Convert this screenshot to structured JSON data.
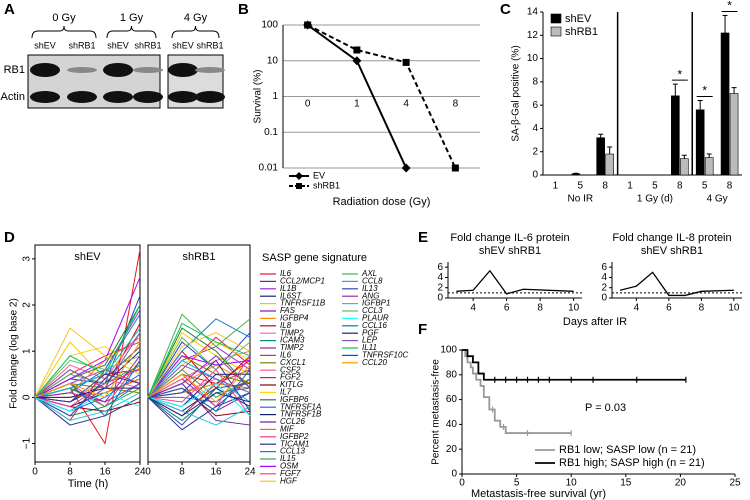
{
  "blot": {
    "label": "A",
    "doses": [
      "0 Gy",
      "1 Gy",
      "4 Gy"
    ],
    "lanes": [
      "shEV",
      "shRB1",
      "shEV",
      "shRB1",
      "shEV",
      "shRB1"
    ],
    "rows": [
      "RB1",
      "Actin"
    ]
  },
  "chart_data": [
    {
      "type": "line",
      "label": "B",
      "ylabel": "Survival (%)",
      "xlabel": "Radiation dose (Gy)",
      "categories": [
        "0",
        "1",
        "4",
        "8"
      ],
      "log_y": true,
      "ylim": [
        0.01,
        100
      ],
      "yticks": [
        0.01,
        0.1,
        1,
        10,
        100
      ],
      "grid": true,
      "legend": "lower left",
      "series": [
        {
          "name": "EV",
          "color": "#000000",
          "marker": "diamond",
          "dash": "solid",
          "values": [
            100,
            10,
            0.01,
            null
          ]
        },
        {
          "name": "shRB1",
          "color": "#000000",
          "marker": "square",
          "dash": "dashed",
          "values": [
            100,
            20,
            9,
            0.01
          ]
        }
      ]
    },
    {
      "type": "bar",
      "label": "C",
      "ylabel": "SA-β-Gal positive (%)",
      "ylim": [
        0,
        14
      ],
      "yticks": [
        0,
        2,
        4,
        6,
        8,
        10,
        12,
        14
      ],
      "legend": "upper left",
      "groups": [
        {
          "name": "No IR",
          "categories": [
            "1",
            "5",
            "8"
          ]
        },
        {
          "name": "1 Gy (d)",
          "categories": [
            "1",
            "5",
            "8"
          ]
        },
        {
          "name": "4 Gy",
          "categories": [
            "5",
            "8"
          ]
        }
      ],
      "series": [
        {
          "name": "shEV",
          "color": "#000000",
          "values": [
            0,
            0.1,
            3.2,
            0,
            0,
            6.8,
            5.6,
            12.2
          ],
          "errors": [
            0,
            0.05,
            0.3,
            0,
            0,
            1.0,
            0.8,
            1.5
          ]
        },
        {
          "name": "shRB1",
          "color": "#bbbbbb",
          "values": [
            0,
            0,
            1.8,
            0,
            0,
            1.4,
            1.5,
            7.0
          ],
          "errors": [
            0,
            0,
            0.6,
            0,
            0,
            0.3,
            0.3,
            0.5
          ]
        }
      ],
      "significance": [
        null,
        null,
        null,
        null,
        null,
        "*",
        "*",
        "*"
      ]
    },
    {
      "type": "line",
      "label": "D",
      "ylabel": "Fold change (log base 2)",
      "xlabel": "Time (h)",
      "x": [
        0,
        8,
        16,
        24
      ],
      "xlim": [
        0,
        24
      ],
      "xticks": [
        0,
        8,
        16,
        24
      ],
      "ylim": [
        -1.4,
        3.3
      ],
      "yticks": [
        {
          "value": -1,
          "label": "−1"
        },
        0,
        1,
        2,
        3
      ],
      "panels": [
        "shEV",
        "shRB1"
      ],
      "legend_title": "SASP gene signature",
      "series": [
        {
          "name": "IL6",
          "color": "#e41a1c",
          "values": [
            [
              0,
              0.2,
              -1.0,
              3.2
            ],
            [
              0,
              0.5,
              0.3,
              0.8
            ]
          ]
        },
        {
          "name": "CCL2/MCP1",
          "color": "#1f3fbf",
          "values": [
            [
              0,
              0.4,
              0.3,
              2.2
            ],
            [
              0,
              1.2,
              0.6,
              1.4
            ]
          ]
        },
        {
          "name": "IL1B",
          "color": "#9b30d0",
          "values": [
            [
              0,
              0.3,
              0.6,
              1.9
            ],
            [
              0,
              0.8,
              1.1,
              0.6
            ]
          ]
        },
        {
          "name": "IL6ST",
          "color": "#1a237e",
          "values": [
            [
              0,
              -0.2,
              0.1,
              0.4
            ],
            [
              0,
              -0.3,
              0.2,
              -0.2
            ]
          ]
        },
        {
          "name": "TNFRSF11B",
          "color": "#e6d200",
          "values": [
            [
              0,
              1.2,
              0.4,
              1.1
            ],
            [
              0,
              1.4,
              0.9,
              0.5
            ]
          ]
        },
        {
          "name": "FAS",
          "color": "#7b1fa2",
          "values": [
            [
              0,
              -0.3,
              0.2,
              0.7
            ],
            [
              0,
              0.2,
              -0.3,
              0.1
            ]
          ]
        },
        {
          "name": "IGFBP4",
          "color": "#ff8c00",
          "values": [
            [
              0,
              0.1,
              0.8,
              1.3
            ],
            [
              0,
              0.3,
              0.7,
              0.3
            ]
          ]
        },
        {
          "name": "IL8",
          "color": "#d50000",
          "values": [
            [
              0,
              0.6,
              0.2,
              1.6
            ],
            [
              0,
              1.0,
              0.2,
              0.9
            ]
          ]
        },
        {
          "name": "TIMP2",
          "color": "#ff66cc",
          "values": [
            [
              0,
              -0.1,
              0.4,
              0.2
            ],
            [
              0,
              0.1,
              0.4,
              -0.1
            ]
          ]
        },
        {
          "name": "ICAM3",
          "color": "#00897b",
          "values": [
            [
              0,
              -0.4,
              -0.2,
              0.3
            ],
            [
              0,
              -0.5,
              0.1,
              0.2
            ]
          ]
        },
        {
          "name": "TIMP2",
          "color": "#8e24aa",
          "values": [
            [
              0,
              0.2,
              -0.1,
              0.9
            ],
            [
              0,
              0.4,
              -0.2,
              0.4
            ]
          ]
        },
        {
          "name": "IL6",
          "color": "#e91e63",
          "values": [
            [
              0,
              0.5,
              0.9,
              1.2
            ],
            [
              0,
              0.6,
              1.3,
              0.7
            ]
          ]
        },
        {
          "name": "CXCL1",
          "color": "#808000",
          "values": [
            [
              0,
              0.3,
              0.2,
              0.1
            ],
            [
              0,
              0.9,
              0.5,
              0.3
            ]
          ]
        },
        {
          "name": "CSF2",
          "color": "#f06292",
          "values": [
            [
              0,
              0.7,
              0.4,
              1.4
            ],
            [
              0,
              0.4,
              0.8,
              1.0
            ]
          ]
        },
        {
          "name": "FGF2",
          "color": "#c62828",
          "values": [
            [
              0,
              -0.5,
              0.6,
              0.3
            ],
            [
              0,
              -0.4,
              0.3,
              0.6
            ]
          ]
        },
        {
          "name": "KITLG",
          "color": "#8b0000",
          "values": [
            [
              0,
              -0.2,
              -0.3,
              -0.1
            ],
            [
              0,
              0.2,
              -0.4,
              -0.3
            ]
          ]
        },
        {
          "name": "IL7",
          "color": "#ffd600",
          "values": [
            [
              0,
              0.9,
              1.1,
              0.6
            ],
            [
              0,
              0.7,
              1.2,
              0.8
            ]
          ]
        },
        {
          "name": "IGFBP6",
          "color": "#2e7d32",
          "values": [
            [
              0,
              0.4,
              0.7,
              2.0
            ],
            [
              0,
              1.5,
              1.0,
              0.2
            ]
          ]
        },
        {
          "name": "TNFRSF1A",
          "color": "#2962ff",
          "values": [
            [
              0,
              -0.3,
              0.0,
              0.5
            ],
            [
              0,
              0.0,
              -0.1,
              0.4
            ]
          ]
        },
        {
          "name": "TNFRSF1B",
          "color": "#0d1b6b",
          "values": [
            [
              0,
              -0.1,
              0.3,
              1.0
            ],
            [
              0,
              -0.2,
              0.5,
              0.5
            ]
          ]
        },
        {
          "name": "CCL26",
          "color": "#6a1b9a",
          "values": [
            [
              0,
              0.2,
              0.5,
              0.6
            ],
            [
              0,
              0.3,
              -0.5,
              -0.6
            ]
          ]
        },
        {
          "name": "MIF",
          "color": "#ef6c00",
          "values": [
            [
              0,
              0.0,
              0.1,
              0.4
            ],
            [
              0,
              0.1,
              0.3,
              0.2
            ]
          ]
        },
        {
          "name": "IGFBP2",
          "color": "#ec407a",
          "values": [
            [
              0,
              0.3,
              -0.2,
              0.8
            ],
            [
              0,
              0.5,
              -0.2,
              0.9
            ]
          ]
        },
        {
          "name": "TICAM1",
          "color": "#283593",
          "values": [
            [
              0,
              -0.6,
              -0.4,
              0.0
            ],
            [
              0,
              -0.7,
              -0.2,
              0.1
            ]
          ]
        },
        {
          "name": "CCL13",
          "color": "#1976d2",
          "values": [
            [
              0,
              0.1,
              0.6,
              1.8
            ],
            [
              0,
              1.0,
              1.7,
              1.3
            ]
          ]
        },
        {
          "name": "IL15",
          "color": "#43a047",
          "values": [
            [
              0,
              0.2,
              -0.2,
              0.2
            ],
            [
              0,
              0.6,
              0.0,
              0.4
            ]
          ]
        },
        {
          "name": "OSM",
          "color": "#aa00ff",
          "values": [
            [
              0,
              0.4,
              0.8,
              2.6
            ],
            [
              0,
              0.9,
              0.7,
              0.8
            ]
          ]
        },
        {
          "name": "FGF7",
          "color": "#ff4081",
          "values": [
            [
              0,
              -0.2,
              0.3,
              0.6
            ],
            [
              0,
              -0.1,
              0.6,
              -0.4
            ]
          ]
        },
        {
          "name": "HGF",
          "color": "#fbc02d",
          "values": [
            [
              0,
              1.5,
              0.9,
              0.5
            ],
            [
              0,
              1.1,
              1.4,
              1.0
            ]
          ]
        },
        {
          "name": "AXL",
          "color": "#4caf50",
          "values": [
            [
              0,
              0.5,
              0.3,
              0.7
            ],
            [
              0,
              1.8,
              1.1,
              1.7
            ]
          ]
        },
        {
          "name": "CCL8",
          "color": "#00bcd4",
          "values": [
            [
              0,
              0.2,
              0.5,
              1.5
            ],
            [
              0,
              0.8,
              0.4,
              -0.1
            ]
          ]
        },
        {
          "name": "IL13",
          "color": "#3949ab",
          "values": [
            [
              0,
              -0.4,
              0.4,
              1.1
            ],
            [
              0,
              -0.6,
              0.2,
              0.3
            ]
          ]
        },
        {
          "name": "ANG",
          "color": "#9c27b0",
          "values": [
            [
              0,
              0.1,
              -0.1,
              0.3
            ],
            [
              0,
              0.3,
              0.9,
              0.2
            ]
          ]
        },
        {
          "name": "IGFBP1",
          "color": "#26c6da",
          "values": [
            [
              0,
              -0.5,
              -0.3,
              0.1
            ],
            [
              0,
              -0.3,
              -0.6,
              -0.2
            ]
          ]
        },
        {
          "name": "CCL3",
          "color": "#66bb6a",
          "values": [
            [
              0,
              0.8,
              0.6,
              0.9
            ],
            [
              0,
              1.3,
              0.6,
              1.2
            ]
          ]
        },
        {
          "name": "PLAUR",
          "color": "#18ffff",
          "values": [
            [
              0,
              -0.3,
              0.1,
              -0.2
            ],
            [
              0,
              -0.2,
              0.3,
              -0.4
            ]
          ]
        },
        {
          "name": "CCL16",
          "color": "#0277bd",
          "values": [
            [
              0,
              0.3,
              -0.4,
              0.8
            ],
            [
              0,
              0.2,
              -0.3,
              0.6
            ]
          ]
        },
        {
          "name": "PGF",
          "color": "#1a237e",
          "values": [
            [
              0,
              0.0,
              0.2,
              0.2
            ],
            [
              0,
              -0.4,
              0.1,
              -0.1
            ]
          ]
        },
        {
          "name": "LEP",
          "color": "#7e57c2",
          "values": [
            [
              0,
              0.6,
              0.2,
              1.4
            ],
            [
              0,
              0.7,
              0.4,
              0.1
            ]
          ]
        },
        {
          "name": "IL11",
          "color": "#00c853",
          "values": [
            [
              0,
              0.9,
              0.5,
              2.0
            ],
            [
              0,
              1.6,
              1.2,
              0.9
            ]
          ]
        },
        {
          "name": "TNFRSF10C",
          "color": "#303f9f",
          "values": [
            [
              0,
              -0.1,
              0.5,
              0.3
            ],
            [
              0,
              0.1,
              0.8,
              -0.3
            ]
          ]
        },
        {
          "name": "CCL20",
          "color": "#ff9800",
          "values": [
            [
              0,
              0.3,
              0.0,
              1.2
            ],
            [
              0,
              0.5,
              -0.1,
              0.7
            ]
          ]
        }
      ]
    },
    {
      "type": "line",
      "label": "E",
      "xlabel": "Days after IR",
      "xlim": [
        2.5,
        10.5
      ],
      "xticks": [
        4,
        6,
        8,
        10
      ],
      "ylim": [
        0,
        7
      ],
      "yticks": [
        0,
        2,
        4,
        6
      ],
      "reference_line": 1,
      "color": "#000000",
      "panels": [
        {
          "title": "Fold change IL-6 protein",
          "subtitle": "shEV shRB1",
          "x": [
            3,
            4,
            5,
            6,
            7,
            10
          ],
          "values": [
            1.3,
            1.5,
            5.3,
            0.8,
            1.7,
            1.3
          ]
        },
        {
          "title": "Fold change IL-8 protein",
          "subtitle": "shEV shRB1",
          "x": [
            3,
            4,
            5,
            6,
            7,
            8,
            10
          ],
          "values": [
            1.5,
            2.3,
            5.0,
            0.5,
            0.5,
            1.3,
            1.5
          ]
        }
      ]
    },
    {
      "type": "step",
      "label": "F",
      "ylabel": "Percent metastasis-free",
      "xlabel": "Metastasis-free survival (yr)",
      "xlim": [
        0,
        25
      ],
      "xticks": [
        0,
        5,
        10,
        15,
        20,
        25
      ],
      "ylim": [
        0,
        100
      ],
      "yticks": [
        0,
        20,
        40,
        60,
        80,
        100
      ],
      "annotation": "P = 0.03",
      "legend": "lower right",
      "series": [
        {
          "name": "RB1 low; SASP low (n = 21)",
          "color": "#999999",
          "x": [
            0,
            0.3,
            0.5,
            0.8,
            1,
            1.3,
            1.7,
            2,
            2.5,
            3,
            3.5,
            4,
            10
          ],
          "values": [
            100,
            95,
            90,
            86,
            81,
            76,
            71,
            62,
            52,
            43,
            38,
            33,
            33
          ],
          "censored_x": [
            2.8,
            3.8,
            6,
            10
          ]
        },
        {
          "name": "RB1 high; SASP high (n = 21)",
          "color": "#000000",
          "x": [
            0,
            0.5,
            1,
            1.5,
            2,
            20.5
          ],
          "values": [
            100,
            95,
            90,
            81,
            76,
            76
          ],
          "censored_x": [
            3,
            4,
            5,
            6,
            7,
            8,
            10,
            12,
            16,
            20.5
          ]
        }
      ]
    }
  ]
}
